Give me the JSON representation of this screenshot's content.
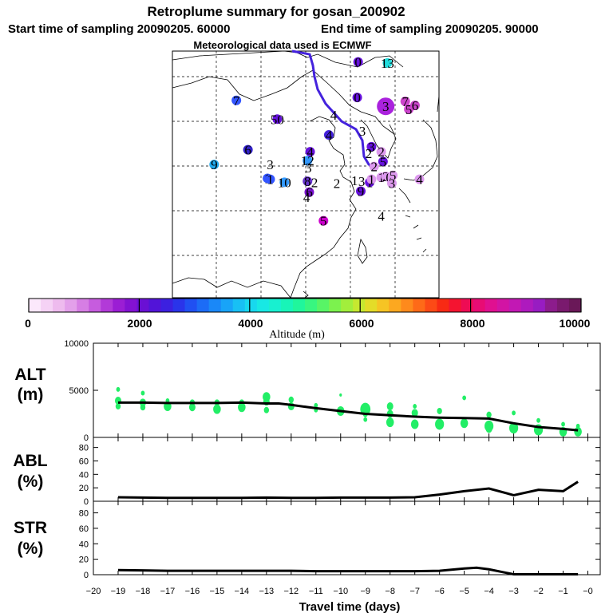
{
  "header": {
    "title": "Retroplume summary for gosan_200902",
    "start_time": "Start time of sampling 20090205. 60000",
    "end_time": "End time of sampling 20090205. 90000",
    "met_data": "Meteorological data used is ECMWF"
  },
  "colors": {
    "marker_green": "#22ee66",
    "trajectory": "#4422dd",
    "line": "#000000"
  },
  "chart_data": [
    {
      "type": "scatter",
      "name": "map-plume-centroids",
      "description_units": "day index labels plotted over east Asia map",
      "points": [
        {
          "label": "0",
          "lon": 126.9,
          "lat": 44.9,
          "color": "#6611dd"
        },
        {
          "label": "0",
          "lon": 126.8,
          "lat": 41.3,
          "color": "#6611dd"
        },
        {
          "label": "13",
          "lon": 130.2,
          "lat": 44.8,
          "color": "#22dddd"
        },
        {
          "label": "7",
          "lon": 113.2,
          "lat": 41.0,
          "color": "#3355ff"
        },
        {
          "label": "3",
          "lon": 130.0,
          "lat": 40.4,
          "color": "#aa22dd"
        },
        {
          "label": "7",
          "lon": 132.2,
          "lat": 40.9,
          "color": "#cc44cc"
        },
        {
          "label": "5",
          "lon": 132.6,
          "lat": 40.1,
          "color": "#cc44cc"
        },
        {
          "label": "6",
          "lon": 133.3,
          "lat": 40.5,
          "color": "#cc44cc"
        },
        {
          "label": "50",
          "lon": 117.8,
          "lat": 39.1,
          "color": "#6611dd"
        },
        {
          "label": "4",
          "lon": 123.6,
          "lat": 37.5,
          "color": "#4422dd"
        },
        {
          "label": "3",
          "lon": 128.4,
          "lat": 36.3,
          "color": "#6611dd"
        },
        {
          "label": "2",
          "lon": 129.5,
          "lat": 35.8,
          "color": "#dd99ee"
        },
        {
          "label": "6",
          "lon": 114.5,
          "lat": 36.0,
          "color": "#3322cc"
        },
        {
          "label": "4",
          "lon": 121.5,
          "lat": 35.8,
          "color": "#6611dd"
        },
        {
          "label": "12",
          "lon": 121.2,
          "lat": 34.9,
          "color": "#3399ff"
        },
        {
          "label": "9",
          "lon": 110.7,
          "lat": 34.5,
          "color": "#22aaee"
        },
        {
          "label": "3",
          "lon": 117.0,
          "lat": 34.5,
          "color": "#ffffff"
        },
        {
          "label": "3",
          "lon": 121.3,
          "lat": 34.2,
          "color": "#ffffff"
        },
        {
          "label": "5",
          "lon": 129.7,
          "lat": 34.8,
          "color": "#6611dd"
        },
        {
          "label": "2",
          "lon": 128.7,
          "lat": 34.3,
          "color": "#dd99ee"
        },
        {
          "label": "1",
          "lon": 116.7,
          "lat": 33.1,
          "color": "#3355ff"
        },
        {
          "label": "1",
          "lon": 117.0,
          "lat": 33.0,
          "color": "#3355ff"
        },
        {
          "label": "10",
          "lon": 118.6,
          "lat": 32.7,
          "color": "#3399ff"
        },
        {
          "label": "8",
          "lon": 121.2,
          "lat": 32.8,
          "color": "#6633cc"
        },
        {
          "label": "2",
          "lon": 122.0,
          "lat": 32.7,
          "color": "#ffffff"
        },
        {
          "label": "2",
          "lon": 124.5,
          "lat": 32.6,
          "color": "#ffffff"
        },
        {
          "label": "1",
          "lon": 126.5,
          "lat": 32.9,
          "color": "#ffffff"
        },
        {
          "label": "3",
          "lon": 127.3,
          "lat": 32.8,
          "color": "#ffffff"
        },
        {
          "label": "1",
          "lon": 128.2,
          "lat": 32.7,
          "color": "#6611dd"
        },
        {
          "label": "1",
          "lon": 128.4,
          "lat": 33.0,
          "color": "#dd99ee"
        },
        {
          "label": "1",
          "lon": 129.5,
          "lat": 33.2,
          "color": "#dd99ee"
        },
        {
          "label": "2",
          "lon": 130.0,
          "lat": 33.3,
          "color": "#dd99ee"
        },
        {
          "label": "0",
          "lon": 130.4,
          "lat": 33.2,
          "color": "#dd99ee"
        },
        {
          "label": "5",
          "lon": 130.8,
          "lat": 33.4,
          "color": "#dd99ee"
        },
        {
          "label": "4",
          "lon": 133.8,
          "lat": 33.0,
          "color": "#dd99ee"
        },
        {
          "label": "3",
          "lon": 130.7,
          "lat": 32.6,
          "color": "#dd99ee"
        },
        {
          "label": "6",
          "lon": 121.4,
          "lat": 31.7,
          "color": "#7711cc"
        },
        {
          "label": "4",
          "lon": 121.1,
          "lat": 31.2,
          "color": "#ffffff"
        },
        {
          "label": "9",
          "lon": 127.2,
          "lat": 31.8,
          "color": "#6611dd"
        },
        {
          "label": "4",
          "lon": 129.5,
          "lat": 29.3,
          "color": "#ffffff"
        },
        {
          "label": "5",
          "lon": 123.0,
          "lat": 28.8,
          "color": "#cc00cc"
        }
      ],
      "trajectory_labels": [
        "4",
        "3",
        "2"
      ]
    },
    {
      "type": "colorbar",
      "name": "altitude-colorbar",
      "range": [
        0,
        10000
      ],
      "ticks": [
        "0",
        "2000",
        "4000",
        "6000",
        "8000",
        "10000"
      ],
      "title": "Altitude (m)",
      "colors": [
        "#fbe8fb",
        "#f5d2f5",
        "#eebbee",
        "#e3a0ea",
        "#d67ee4",
        "#c65cde",
        "#b23ad8",
        "#9b1ed4",
        "#8312d2",
        "#6a10d4",
        "#5214d8",
        "#3c20e0",
        "#2a34ea",
        "#2050f2",
        "#1c6cf6",
        "#1a88f8",
        "#18a4f8",
        "#18c0f4",
        "#18d8ee",
        "#18e8e4",
        "#18f0d0",
        "#18f4b8",
        "#20f69c",
        "#38f680",
        "#58f466",
        "#7cf24e",
        "#a2ee3c",
        "#c6e830",
        "#e4dc28",
        "#f6c424",
        "#fca820",
        "#fe8a1c",
        "#fe6a18",
        "#fc4a16",
        "#f82a14",
        "#f41430",
        "#ee0c54",
        "#e80c74",
        "#e01090",
        "#d214a4",
        "#c218b4",
        "#ae1abe",
        "#981cc2",
        "#8c1c8c",
        "#7a1a6e",
        "#6a1858"
      ]
    },
    {
      "type": "line",
      "name": "ALT",
      "ylabel": "ALT\n(m)",
      "ylim": [
        0,
        10000
      ],
      "yticks": [
        "0",
        "5000",
        "10000"
      ],
      "x": [
        -19,
        -18,
        -17,
        -16,
        -15,
        -14,
        -13,
        -12.5,
        -12,
        -11,
        -10,
        -9,
        -8,
        -7,
        -6,
        -5,
        -4,
        -3,
        -2,
        -1,
        -0.4
      ],
      "y": [
        3700,
        3700,
        3650,
        3650,
        3650,
        3700,
        3600,
        3600,
        3450,
        3100,
        2800,
        2500,
        2350,
        2200,
        2100,
        2050,
        2000,
        1500,
        1100,
        900,
        750
      ],
      "scatter_x": [
        -19,
        -19,
        -19,
        -18,
        -18,
        -18,
        -17,
        -17,
        -16,
        -16,
        -15,
        -15,
        -14,
        -14,
        -13,
        -13,
        -13,
        -12,
        -12,
        -11,
        -11,
        -10,
        -10,
        -9,
        -9,
        -9,
        -8,
        -8,
        -8,
        -7,
        -7,
        -7,
        -6,
        -6,
        -5,
        -5,
        -4,
        -4,
        -4,
        -3,
        -3,
        -2,
        -2,
        -1,
        -1,
        -0.4,
        -0.4
      ],
      "scatter_y": [
        5100,
        3900,
        3300,
        4700,
        3700,
        3200,
        3900,
        3300,
        3700,
        3200,
        3700,
        3000,
        3700,
        3200,
        4300,
        3800,
        2900,
        4000,
        3300,
        3400,
        2900,
        4500,
        2800,
        3000,
        2500,
        1900,
        3300,
        2500,
        1600,
        3300,
        2600,
        1400,
        2800,
        1400,
        4200,
        1500,
        2400,
        1200,
        900,
        2600,
        1000,
        1800,
        800,
        1400,
        600,
        1200,
        600
      ],
      "scatter_size": [
        3,
        5,
        4,
        3,
        5,
        4,
        3,
        6,
        4,
        5,
        4,
        6,
        4,
        6,
        6,
        5,
        4,
        4,
        5,
        3,
        3,
        2,
        6,
        8,
        4,
        3,
        5,
        5,
        6,
        3,
        5,
        6,
        4,
        7,
        3,
        6,
        4,
        7,
        5,
        3,
        7,
        3,
        7,
        3,
        6,
        3,
        6
      ],
      "xlim": [
        -20,
        0.5
      ]
    },
    {
      "type": "line",
      "name": "ABL",
      "ylabel": "ABL\n(%)",
      "ylim": [
        0,
        95
      ],
      "yticks": [
        "0",
        "20",
        "40",
        "60",
        "80"
      ],
      "x": [
        -19,
        -18,
        -17,
        -16,
        -15,
        -14,
        -13,
        -12,
        -11,
        -10,
        -9,
        -8,
        -7,
        -6,
        -5,
        -4,
        -3,
        -2,
        -1,
        -0.4
      ],
      "y": [
        6,
        5.5,
        5,
        5,
        5,
        5,
        5.5,
        5,
        5,
        5.5,
        5.5,
        5.5,
        6,
        10,
        15,
        19,
        9,
        17,
        15,
        29
      ],
      "xlim": [
        -20,
        0.5
      ]
    },
    {
      "type": "line",
      "name": "STR",
      "ylabel": "STR\n(%)",
      "ylim": [
        0,
        95
      ],
      "yticks": [
        "0",
        "20",
        "40",
        "60",
        "80"
      ],
      "x": [
        -19,
        -18,
        -17,
        -16,
        -15,
        -14,
        -13,
        -12,
        -11,
        -10,
        -9,
        -8,
        -7,
        -6,
        -5,
        -4.5,
        -4,
        -3,
        -2,
        -1,
        -0.4
      ],
      "y": [
        6,
        5.5,
        5,
        5,
        5,
        5,
        5,
        5,
        4.5,
        4.5,
        4.5,
        4.5,
        4.5,
        5,
        8,
        9,
        7,
        0.5,
        0.5,
        0.5,
        0.5
      ],
      "xlim": [
        -20,
        0.5
      ]
    }
  ],
  "xaxis": {
    "ticks": [
      "−20",
      "−19",
      "−18",
      "−17",
      "−16",
      "−15",
      "−14",
      "−13",
      "−12",
      "−11",
      "−10",
      "−9",
      "−8",
      "−7",
      "−6",
      "−5",
      "−4",
      "−3",
      "−2",
      "−1",
      "−0"
    ],
    "label": "Travel time (days)"
  },
  "panels": {
    "alt_title": "ALT",
    "alt_unit": "(m)",
    "abl_title": "ABL",
    "abl_unit": "(%)",
    "str_title": "STR",
    "str_unit": "(%)"
  }
}
